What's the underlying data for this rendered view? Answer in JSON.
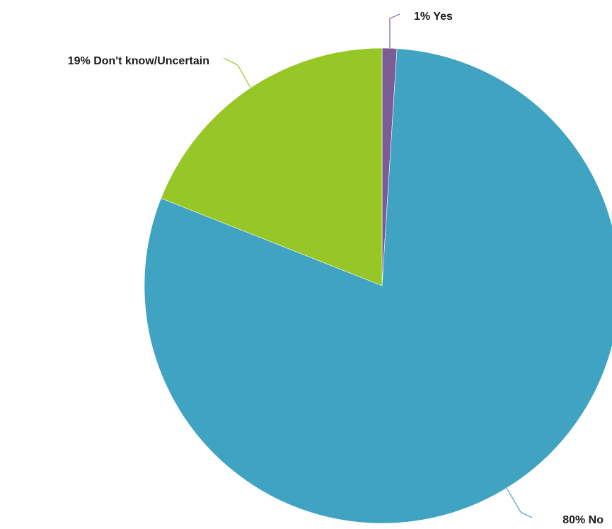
{
  "chart_data": {
    "type": "pie",
    "start_angle_deg": 0,
    "direction": "clockwise",
    "slices": [
      {
        "label": "1% Yes",
        "value": 1,
        "color": "#7c5c94"
      },
      {
        "label": "80% No",
        "value": 80,
        "color": "#41a3c2"
      },
      {
        "label": "19% Don't know/Uncertain",
        "value": 19,
        "color": "#97c627"
      }
    ]
  }
}
